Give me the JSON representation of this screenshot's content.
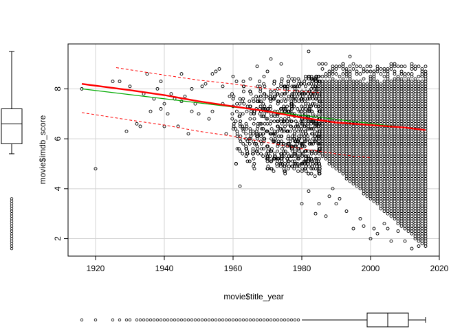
{
  "chart_data": {
    "type": "scatter",
    "title": "",
    "xlabel": "movie$title_year",
    "ylabel": "movie$imdb_score",
    "xlim": [
      1912,
      2020
    ],
    "ylim": [
      1.3,
      9.8
    ],
    "x_ticks": [
      1920,
      1940,
      1960,
      1980,
      2000,
      2020
    ],
    "y_ticks": [
      2,
      4,
      6,
      8
    ],
    "x_tick_labels": [
      "1920",
      "1940",
      "1960",
      "1980",
      "2000",
      "2020"
    ],
    "y_tick_labels": [
      "2",
      "4",
      "6",
      "8"
    ],
    "grid": true,
    "colors": {
      "points": "#000000",
      "linear_fit": "#00aa00",
      "smooth_fit": "#ff0000",
      "grid": "#d3d3d3"
    },
    "series": [
      {
        "kind": "points",
        "x": [
          1916,
          1920,
          1925,
          1927,
          1929,
          1930,
          1932,
          1933,
          1934,
          1935,
          1936,
          1937,
          1938,
          1939,
          1939,
          1940,
          1940,
          1941,
          1942,
          1943,
          1944,
          1945,
          1945,
          1946,
          1947,
          1948,
          1948,
          1949,
          1950,
          1951,
          1952,
          1953,
          1954,
          1954,
          1955,
          1956,
          1957,
          1957,
          1958,
          1959,
          1960,
          1960,
          1961,
          1962,
          1962,
          1963,
          1964,
          1965,
          1966,
          1967,
          1968,
          1968,
          1969,
          1970,
          1970,
          1971,
          1972,
          1973,
          1974,
          1975,
          1976,
          1977,
          1978,
          1979,
          1980,
          1980,
          1981,
          1982,
          1982,
          1983,
          1984,
          1985,
          1986,
          1987,
          1988,
          1989,
          1990,
          1991,
          1992,
          1993,
          1994,
          1995,
          1996,
          1997,
          1998,
          1999,
          2000,
          2001,
          2002,
          2003,
          2004,
          2005,
          2006,
          2007,
          2008,
          2009,
          2010,
          2011,
          2012,
          2013,
          2014,
          2015,
          2016
        ],
        "y": [
          8.0,
          4.8,
          8.3,
          8.3,
          6.3,
          8.1,
          6.6,
          6.5,
          7.8,
          8.6,
          7.1,
          7.6,
          8.0,
          7.2,
          8.3,
          7.4,
          6.5,
          7.0,
          7.8,
          7.6,
          6.5,
          7.5,
          8.6,
          7.7,
          6.2,
          7.1,
          8.0,
          7.4,
          7.0,
          8.1,
          8.2,
          6.8,
          7.1,
          8.6,
          8.7,
          8.8,
          7.4,
          8.1,
          6.2,
          7.7,
          8.5,
          7.3,
          8.3,
          4.1,
          7.6,
          8.3,
          7.1,
          8.4,
          7.5,
          8.9,
          6.2,
          7.7,
          8.5,
          8.7,
          6.6,
          9.2,
          8.3,
          7.8,
          9.0,
          8.1,
          8.3,
          7.7,
          8.0,
          8.4,
          3.4,
          6.8,
          6.3,
          9.5,
          3.9,
          8.3,
          3.0,
          3.4,
          8.5,
          2.9,
          3.7,
          4.0,
          3.4,
          3.6,
          9.0,
          3.1,
          9.3,
          2.4,
          8.2,
          2.8,
          2.5,
          8.7,
          2.0,
          2.4,
          2.2,
          8.8,
          2.6,
          2.4,
          1.9,
          9.0,
          2.3,
          8.6,
          1.9,
          3.5,
          1.6,
          8.8,
          1.7,
          3.3,
          8.6
        ]
      },
      {
        "kind": "linear_fit",
        "x": [
          1916,
          2016
        ],
        "y": [
          8.0,
          6.35
        ]
      },
      {
        "kind": "smooth_fit",
        "x": [
          1916,
          1930,
          1940,
          1950,
          1960,
          1970,
          1980,
          1985,
          1990,
          2000,
          2010,
          2016
        ],
        "y": [
          8.2,
          7.95,
          7.75,
          7.5,
          7.3,
          7.1,
          6.85,
          6.75,
          6.65,
          6.55,
          6.45,
          6.35
        ]
      },
      {
        "kind": "spread_upper",
        "x": [
          1926,
          1940,
          1950,
          1960,
          1970,
          1975,
          1980,
          1985
        ],
        "y": [
          8.85,
          8.55,
          8.35,
          8.2,
          8.0,
          7.95,
          7.9,
          7.85
        ]
      },
      {
        "kind": "spread_lower",
        "x": [
          1916,
          1930,
          1940,
          1950,
          1960,
          1970,
          1980,
          1985,
          1990,
          1995,
          2000
        ],
        "y": [
          7.05,
          6.75,
          6.55,
          6.3,
          6.1,
          5.85,
          5.6,
          5.5,
          5.4,
          5.3,
          5.25
        ]
      }
    ],
    "year_band": {
      "x_min": 1985,
      "x_max": 2016,
      "y_min": 1.7,
      "y_max": 9.0,
      "step_x": 1,
      "step_y": 0.1
    },
    "year_fan": {
      "x_min": 1960,
      "x_max": 1985,
      "y_min": 4.5,
      "y_max": 8.6
    },
    "boxplot_y": {
      "min": 5.4,
      "q1": 5.8,
      "median": 6.6,
      "q3": 7.2,
      "max": 9.5,
      "outliers": [
        1.6,
        1.7,
        1.8,
        1.9,
        2.0,
        2.1,
        2.2,
        2.3,
        2.4,
        2.5,
        2.6,
        2.7,
        2.8,
        2.9,
        3.0,
        3.1,
        3.2,
        3.3,
        3.4,
        3.5,
        3.6
      ]
    },
    "boxplot_x": {
      "min": 1980,
      "q1": 1999,
      "median": 2005,
      "q3": 2011,
      "max": 2016,
      "outliers": [
        1916,
        1920,
        1925,
        1927,
        1929,
        1930,
        1932,
        1933,
        1934,
        1935,
        1936,
        1937,
        1938,
        1939,
        1940,
        1941,
        1942,
        1943,
        1944,
        1945,
        1946,
        1947,
        1948,
        1949,
        1950,
        1951,
        1952,
        1953,
        1954,
        1955,
        1956,
        1957,
        1958,
        1959,
        1960,
        1961,
        1962,
        1963,
        1964,
        1965,
        1966,
        1967,
        1968,
        1969,
        1970,
        1971,
        1972,
        1973,
        1974,
        1975,
        1976,
        1977,
        1978,
        1979
      ]
    }
  }
}
